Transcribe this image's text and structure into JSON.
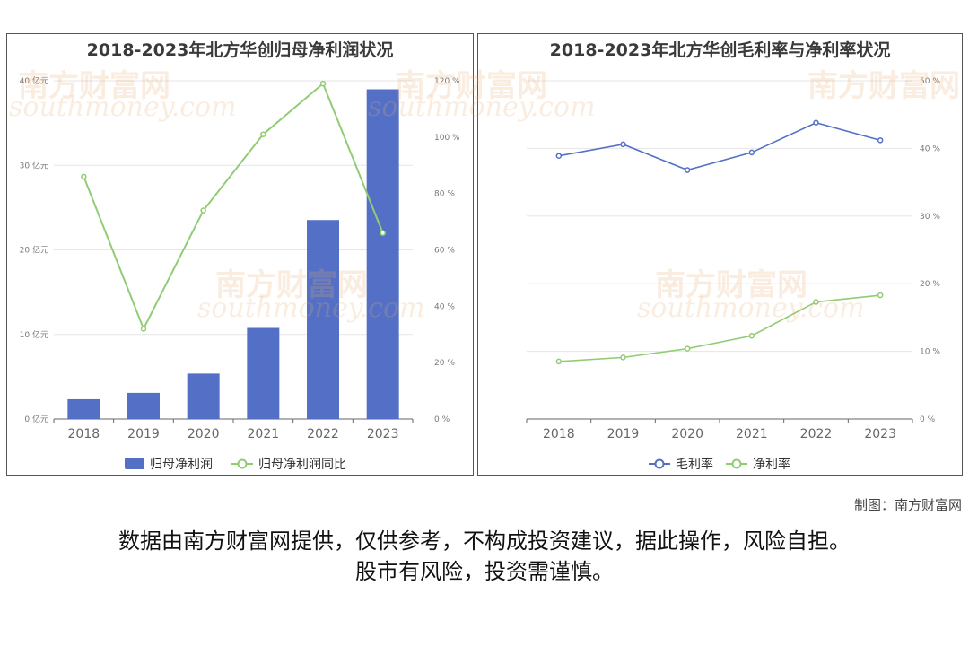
{
  "watermark": {
    "brand": "南方财富网",
    "url": "southmoney.com"
  },
  "credit": "制图：南方财富网",
  "disclaimer": {
    "line1": "数据由南方财富网提供，仅供参考，不构成投资建议，据此操作，风险自担。",
    "line2": "股市有风险，投资需谨慎。"
  },
  "chart_data": [
    {
      "type": "bar",
      "title": "2018-2023年北方华创归母净利润状况",
      "categories": [
        "2018",
        "2019",
        "2020",
        "2021",
        "2022",
        "2023"
      ],
      "series": [
        {
          "name": "归母净利润",
          "type": "bar",
          "axis": "left",
          "color": "#5470c6",
          "values": [
            2.34,
            3.09,
            5.37,
            10.77,
            23.53,
            38.99
          ]
        },
        {
          "name": "归母净利润同比",
          "type": "line",
          "axis": "right",
          "color": "#91cc75",
          "values": [
            86,
            32,
            74,
            101,
            119,
            66
          ]
        }
      ],
      "y_left": {
        "min": 0,
        "max": 40,
        "ticks": [
          "0 亿元",
          "10 亿元",
          "20 亿元",
          "30 亿元",
          "40 亿元"
        ]
      },
      "y_right": {
        "min": 0,
        "max": 120,
        "ticks": [
          "0 %",
          "20 %",
          "40 %",
          "60 %",
          "80 %",
          "100 %",
          "120 %"
        ]
      },
      "grid": true,
      "legend": "bottom-center"
    },
    {
      "type": "line",
      "title": "2018-2023年北方华创毛利率与净利率状况",
      "categories": [
        "2018",
        "2019",
        "2020",
        "2021",
        "2022",
        "2023"
      ],
      "series": [
        {
          "name": "毛利率",
          "color": "#5470c6",
          "values": [
            38.9,
            40.6,
            36.8,
            39.4,
            43.8,
            41.2
          ]
        },
        {
          "name": "净利率",
          "color": "#91cc75",
          "values": [
            8.5,
            9.1,
            10.4,
            12.3,
            17.3,
            18.3
          ]
        }
      ],
      "y_right": {
        "min": 0,
        "max": 50,
        "ticks": [
          "0 %",
          "10 %",
          "20 %",
          "30 %",
          "40 %",
          "50 %"
        ]
      },
      "grid": true,
      "legend": "bottom-center"
    }
  ]
}
